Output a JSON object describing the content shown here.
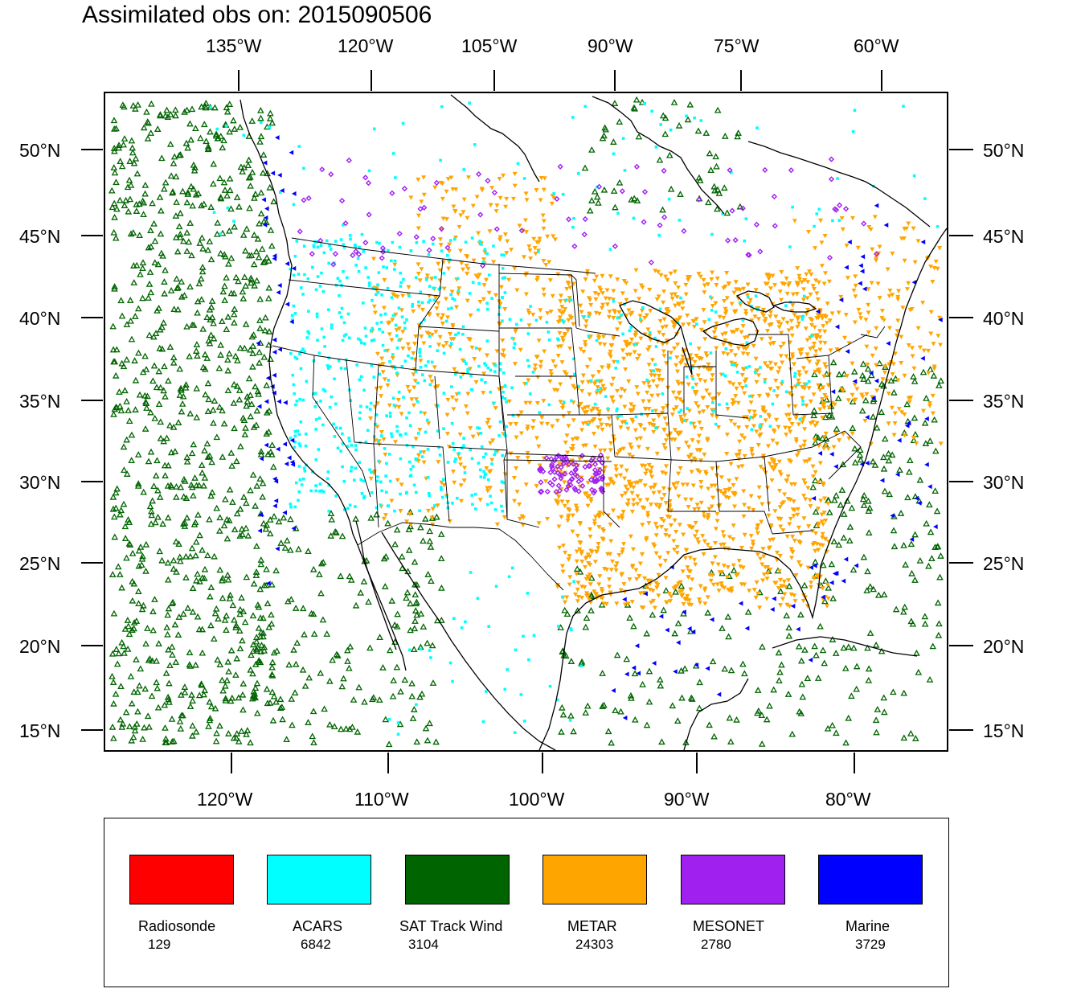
{
  "title": "Assimilated obs on: 2015090506",
  "axes": {
    "top_lon_labels": [
      "135°W",
      "120°W",
      "105°W",
      "90°W",
      "75°W",
      "60°W"
    ],
    "bottom_lon_labels": [
      "120°W",
      "110°W",
      "100°W",
      "90°W",
      "80°W"
    ],
    "lat_labels": [
      "50°N",
      "45°N",
      "40°N",
      "35°N",
      "30°N",
      "25°N",
      "20°N",
      "15°N"
    ]
  },
  "legend": [
    {
      "name": "Radiosonde",
      "count": "129",
      "color": "#ff0000"
    },
    {
      "name": "ACARS",
      "count": "6842",
      "color": "#00ffff"
    },
    {
      "name": "SAT Track Wind",
      "count": "3104",
      "color": "#006400"
    },
    {
      "name": "METAR",
      "count": "24303",
      "color": "#ffa500"
    },
    {
      "name": "MESONET",
      "count": "2780",
      "color": "#a020f0"
    },
    {
      "name": "Marine",
      "count": "3729",
      "color": "#0000ff"
    }
  ],
  "map": {
    "projection": "lambert-conformal",
    "background": "#ffffff",
    "coastline_color": "#000000"
  }
}
